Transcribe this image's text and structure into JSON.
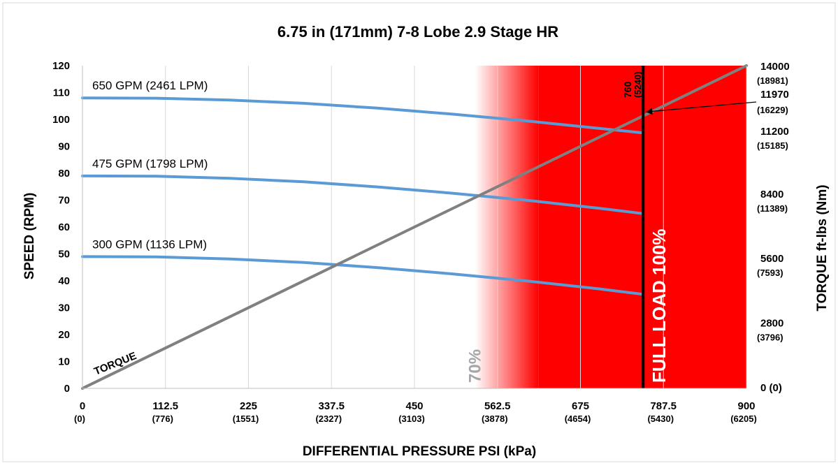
{
  "chart_data": {
    "type": "line",
    "title": "6.75 in (171mm) 7-8 Lobe 2.9 Stage HR",
    "xlabel": "DIFFERENTIAL PRESSURE PSI (kPa)",
    "ylabel": "SPEED (RPM)",
    "y2label": "TORQUE ft-lbs (Nm)",
    "xlim": [
      0,
      900
    ],
    "ylim": [
      0,
      120
    ],
    "y2lim": [
      0,
      14000
    ],
    "grid": "vertical",
    "x_ticks": [
      {
        "value": 0,
        "label": "0",
        "sub": "(0)"
      },
      {
        "value": 112.5,
        "label": "112.5",
        "sub": "(776)"
      },
      {
        "value": 225,
        "label": "225",
        "sub": "(1551)"
      },
      {
        "value": 337.5,
        "label": "337.5",
        "sub": "(2327)"
      },
      {
        "value": 450,
        "label": "450",
        "sub": "(3103)"
      },
      {
        "value": 562.5,
        "label": "562.5",
        "sub": "(3878)"
      },
      {
        "value": 675,
        "label": "675",
        "sub": "(4654)"
      },
      {
        "value": 787.5,
        "label": "787.5",
        "sub": "(5430)"
      },
      {
        "value": 900,
        "label": "900",
        "sub": "(6205)"
      }
    ],
    "y_ticks": [
      0,
      10,
      20,
      30,
      40,
      50,
      60,
      70,
      80,
      90,
      100,
      110,
      120
    ],
    "y2_ticks": [
      {
        "value": 0,
        "label": "0 (0)",
        "sub": ""
      },
      {
        "value": 2800,
        "label": "2800",
        "sub": "(3796)"
      },
      {
        "value": 5600,
        "label": "5600",
        "sub": "(7593)"
      },
      {
        "value": 8400,
        "label": "8400",
        "sub": "(11389)"
      },
      {
        "value": 11200,
        "label": "11200",
        "sub": "(15185)"
      },
      {
        "value": 11970,
        "label": "11970",
        "sub": "(16229)"
      },
      {
        "value": 14000,
        "label": "14000",
        "sub": "(18981)"
      }
    ],
    "series": [
      {
        "name": "650 GPM (2461 LPM)",
        "axis": "left",
        "color": "#5b9bd5",
        "x": [
          0,
          100,
          200,
          300,
          400,
          500,
          600,
          700,
          760
        ],
        "y": [
          108,
          107.9,
          107.2,
          106,
          104.2,
          102,
          99.5,
          96.7,
          95
        ]
      },
      {
        "name": "475 GPM (1798 LPM)",
        "axis": "left",
        "color": "#5b9bd5",
        "x": [
          0,
          100,
          200,
          300,
          400,
          500,
          600,
          700,
          760
        ],
        "y": [
          79,
          78.9,
          78.1,
          76.8,
          74.9,
          72.6,
          70,
          67,
          65
        ]
      },
      {
        "name": "300 GPM (1136 LPM)",
        "axis": "left",
        "color": "#5b9bd5",
        "x": [
          0,
          100,
          200,
          300,
          400,
          500,
          600,
          700,
          760
        ],
        "y": [
          49,
          48.9,
          48.1,
          46.8,
          44.9,
          42.6,
          40,
          37,
          35
        ]
      },
      {
        "name": "TORQUE",
        "axis": "right",
        "color": "#808080",
        "x": [
          0,
          900
        ],
        "y": [
          0,
          14000
        ]
      }
    ],
    "zones": [
      {
        "label": "70%",
        "x": 532,
        "color": "#a6a6a6"
      },
      {
        "label": "FULL LOAD 100%",
        "x": 760,
        "color": "#ffffff"
      }
    ],
    "marker_line": {
      "x": 760,
      "label_top": "760",
      "label_sub": "(5240)",
      "color": "#000000"
    },
    "gradient_zone": {
      "from": 532,
      "to": 618,
      "color": "#ff0000"
    },
    "annotation": {
      "text": "11970",
      "sub": "(16229)",
      "point_x": 760,
      "point_y2": 11970
    }
  }
}
